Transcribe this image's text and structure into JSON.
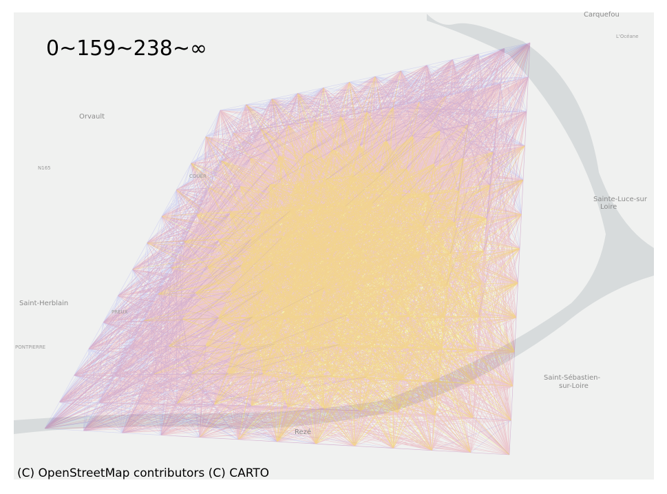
{
  "legend_text": "0~159~238~∞",
  "attribution": "(C) OpenStreetMap contributors (C) CARTO",
  "map_labels": [
    "Carquefou",
    "L'Océane",
    "Orvault",
    "Sainte-Luce-sur",
    "Loire",
    "Saint-Herblain",
    "PREUX",
    "PONTPIERRE",
    "Saint-Sébastien-",
    "sur-Loire",
    "Rezé",
    "N165",
    "COUËR"
  ]
}
